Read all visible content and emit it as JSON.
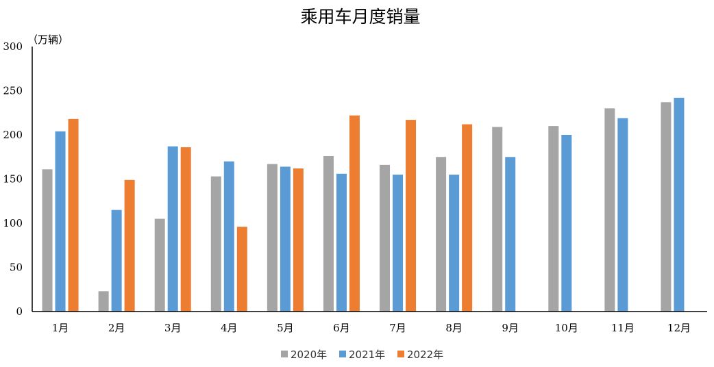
{
  "chart_data": {
    "type": "bar",
    "title": "乘用车月度销量",
    "ylabel": "（万辆）",
    "xlabel": "",
    "ylim": [
      0,
      300
    ],
    "yticks": [
      0,
      50,
      100,
      150,
      200,
      250,
      300
    ],
    "categories": [
      "1月",
      "2月",
      "3月",
      "4月",
      "5月",
      "6月",
      "7月",
      "8月",
      "9月",
      "10月",
      "11月",
      "12月"
    ],
    "series": [
      {
        "name": "2020年",
        "color": "#A5A5A5",
        "values": [
          161,
          23,
          105,
          153,
          167,
          176,
          166,
          175,
          209,
          210,
          230,
          237
        ]
      },
      {
        "name": "2021年",
        "color": "#5B9BD5",
        "values": [
          204,
          115,
          187,
          170,
          164,
          156,
          155,
          155,
          175,
          200,
          219,
          242
        ]
      },
      {
        "name": "2022年",
        "color": "#ED7D31",
        "values": [
          218,
          149,
          186,
          96,
          162,
          222,
          217,
          212,
          null,
          null,
          null,
          null
        ]
      }
    ],
    "grid": false,
    "legend_position": "bottom"
  }
}
